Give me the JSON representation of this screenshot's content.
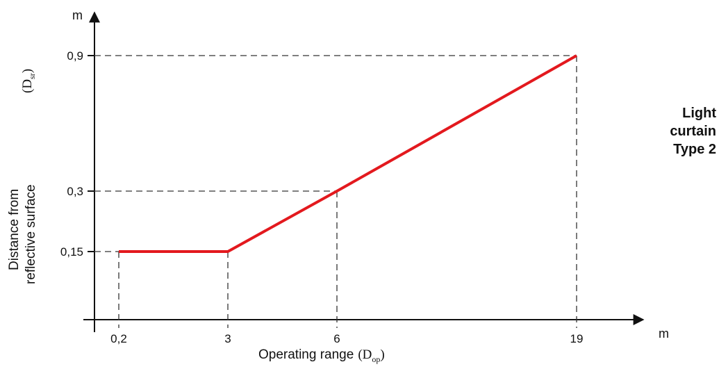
{
  "chart_data": {
    "type": "line",
    "x_ticks": [
      "0,2",
      "3",
      "6",
      "19"
    ],
    "y_ticks": [
      "0,15",
      "0,3",
      "0,9"
    ],
    "x_unit": "m",
    "y_unit": "m",
    "xlabel": "Operating range",
    "xlabel_symbol": "D",
    "xlabel_symbol_sub": "op",
    "ylabel_line1": "Distance from",
    "ylabel_line2": "reflective surface",
    "ylabel_symbol": "D",
    "ylabel_symbol_sub": "sr",
    "points": [
      {
        "x": 0.2,
        "y": 0.15
      },
      {
        "x": 3,
        "y": 0.15
      },
      {
        "x": 6,
        "y": 0.3
      },
      {
        "x": 19,
        "y": 0.9
      }
    ],
    "line_color": "#e3191e",
    "guides": "dashed"
  },
  "side_note": [
    "Light",
    "curtain",
    "Type 2"
  ]
}
